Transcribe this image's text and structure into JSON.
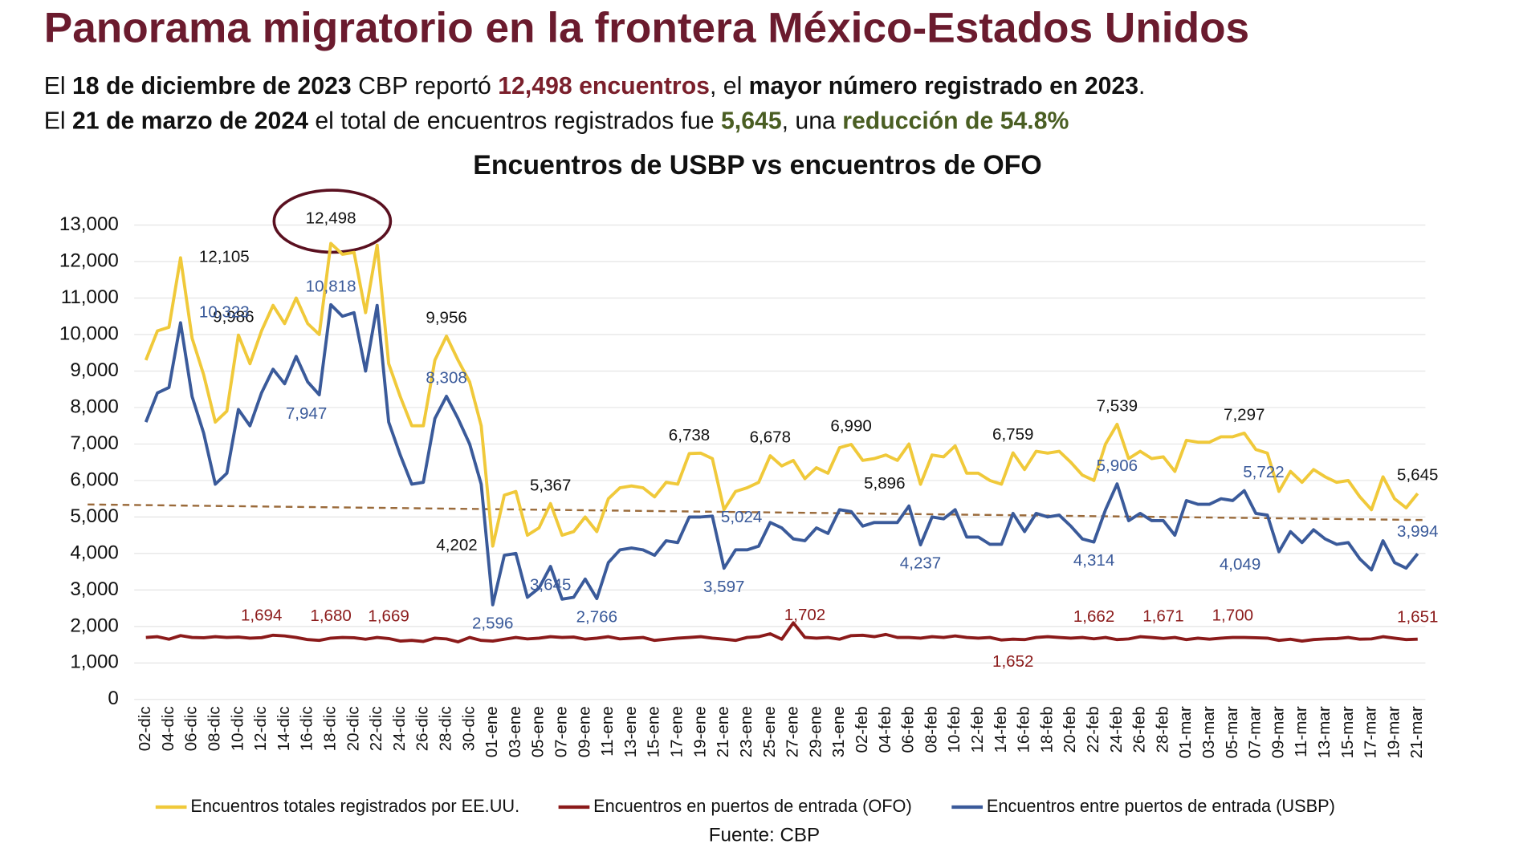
{
  "header": {
    "title": "Panorama migratorio en la frontera México-Estados Unidos",
    "line1": [
      "El ",
      "18 de diciembre de 2023",
      " CBP reportó ",
      "12,498 encuentros",
      ", el ",
      "mayor número registrado en 2023",
      "."
    ],
    "line2": [
      "El ",
      "21 de marzo de 2024",
      " el total de encuentros registrados fue ",
      "5,645",
      ", una ",
      "reducción de 54.8%"
    ]
  },
  "chart_data": {
    "type": "line",
    "title": "Encuentros de USBP vs encuentros de OFO",
    "source": "Fuente: CBP",
    "categories": [
      "02-dic",
      null,
      "04-dic",
      null,
      "06-dic",
      null,
      "08-dic",
      null,
      "10-dic",
      null,
      "12-dic",
      null,
      "14-dic",
      null,
      "16-dic",
      null,
      "18-dic",
      null,
      "20-dic",
      null,
      "22-dic",
      null,
      "24-dic",
      null,
      "26-dic",
      null,
      "28-dic",
      null,
      "30-dic",
      null,
      "01-ene",
      null,
      "03-ene",
      null,
      "05-ene",
      null,
      "07-ene",
      null,
      "09-ene",
      null,
      "11-ene",
      null,
      "13-ene",
      null,
      "15-ene",
      null,
      "17-ene",
      null,
      "19-ene",
      null,
      "21-ene",
      null,
      "23-ene",
      null,
      "25-ene",
      null,
      "27-ene",
      null,
      "29-ene",
      null,
      "31-ene",
      null,
      "02-feb",
      null,
      "04-feb",
      null,
      "06-feb",
      null,
      "08-feb",
      null,
      "10-feb",
      null,
      "12-feb",
      null,
      "14-feb",
      null,
      "16-feb",
      null,
      "18-feb",
      null,
      "20-feb",
      null,
      "22-feb",
      null,
      "24-feb",
      null,
      "26-feb",
      null,
      "28-feb",
      null,
      "01-mar",
      null,
      "03-mar",
      null,
      "05-mar",
      null,
      "07-mar",
      null,
      "09-mar",
      null,
      "11-mar",
      null,
      "13-mar",
      null,
      "15-mar",
      null,
      "17-mar",
      null,
      "19-mar",
      null,
      "21-mar"
    ],
    "series": [
      {
        "name": "Encuentros totales registrados por EE.UU.",
        "color": "#f0c93a",
        "values": [
          9300,
          10100,
          10200,
          12105,
          9900,
          8900,
          7600,
          7900,
          9986,
          9200,
          10100,
          10800,
          10300,
          11000,
          10300,
          10000,
          12498,
          12200,
          12250,
          10600,
          12450,
          9200,
          8300,
          7500,
          7500,
          9300,
          9956,
          9300,
          8700,
          7500,
          4202,
          5600,
          5700,
          4500,
          4700,
          5367,
          4500,
          4600,
          5000,
          4600,
          5500,
          5800,
          5850,
          5800,
          5550,
          5950,
          5900,
          6738,
          6750,
          6600,
          5200,
          5700,
          5800,
          5950,
          6678,
          6400,
          6550,
          6050,
          6350,
          6200,
          6900,
          6990,
          6550,
          6600,
          6700,
          6550,
          7000,
          5896,
          6700,
          6650,
          6950,
          6200,
          6200,
          6000,
          5900,
          6759,
          6300,
          6800,
          6750,
          6800,
          6500,
          6150,
          6000,
          7000,
          7539,
          6600,
          6800,
          6600,
          6650,
          6250,
          7100,
          7050,
          7050,
          7200,
          7200,
          7297,
          6850,
          6750,
          5700,
          6250,
          5950,
          6300,
          6100,
          5950,
          6000,
          5550,
          5200,
          6100,
          5500,
          5250,
          5645
        ],
        "value_labels": [
          null,
          null,
          null,
          "12,105",
          null,
          null,
          null,
          null,
          "9,986",
          null,
          null,
          null,
          null,
          null,
          null,
          null,
          "12,498",
          null,
          null,
          null,
          null,
          null,
          null,
          null,
          null,
          null,
          "9,956",
          null,
          null,
          null,
          "4,202",
          null,
          null,
          null,
          null,
          "5,367",
          null,
          null,
          null,
          null,
          null,
          null,
          null,
          null,
          null,
          null,
          null,
          "6,738",
          null,
          null,
          null,
          null,
          null,
          null,
          "6,678",
          null,
          null,
          null,
          null,
          null,
          null,
          "6,990",
          null,
          null,
          null,
          null,
          null,
          "5,896",
          null,
          null,
          null,
          null,
          null,
          null,
          null,
          "6,759",
          null,
          null,
          null,
          null,
          null,
          null,
          null,
          null,
          "7,539",
          null,
          null,
          null,
          null,
          null,
          null,
          null,
          null,
          null,
          null,
          "7,297",
          null,
          null,
          null,
          null,
          null,
          null,
          null,
          null,
          null,
          null,
          null,
          null,
          null,
          null,
          "5,645"
        ]
      },
      {
        "name": "Encuentros en puertos de entrada (OFO)",
        "color": "#8b1a1a",
        "values": [
          1700,
          1720,
          1650,
          1750,
          1700,
          1690,
          1720,
          1700,
          1710,
          1680,
          1694,
          1760,
          1740,
          1700,
          1640,
          1620,
          1680,
          1700,
          1690,
          1650,
          1700,
          1669,
          1600,
          1620,
          1590,
          1680,
          1660,
          1580,
          1700,
          1620,
          1600,
          1650,
          1700,
          1660,
          1680,
          1720,
          1700,
          1710,
          1650,
          1680,
          1720,
          1660,
          1680,
          1700,
          1620,
          1650,
          1680,
          1700,
          1720,
          1680,
          1650,
          1620,
          1700,
          1720,
          1800,
          1650,
          2100,
          1702,
          1680,
          1700,
          1650,
          1750,
          1760,
          1720,
          1780,
          1700,
          1700,
          1680,
          1720,
          1700,
          1740,
          1700,
          1680,
          1700,
          1630,
          1652,
          1640,
          1700,
          1720,
          1700,
          1680,
          1700,
          1662,
          1700,
          1640,
          1660,
          1720,
          1700,
          1671,
          1700,
          1640,
          1680,
          1650,
          1680,
          1700,
          1700,
          1690,
          1680,
          1620,
          1650,
          1600,
          1640,
          1660,
          1670,
          1700,
          1650,
          1660,
          1720,
          1680,
          1640,
          1651
        ],
        "value_labels": [
          null,
          null,
          null,
          null,
          null,
          null,
          null,
          null,
          null,
          null,
          "1,694",
          null,
          null,
          null,
          null,
          null,
          "1,680",
          null,
          null,
          null,
          null,
          "1,669",
          null,
          null,
          null,
          null,
          null,
          null,
          null,
          null,
          null,
          null,
          null,
          null,
          null,
          null,
          null,
          null,
          null,
          null,
          null,
          null,
          null,
          null,
          null,
          null,
          null,
          null,
          null,
          null,
          null,
          null,
          null,
          null,
          null,
          null,
          null,
          "1,702",
          null,
          null,
          null,
          null,
          null,
          null,
          null,
          null,
          null,
          null,
          null,
          null,
          null,
          null,
          null,
          null,
          null,
          "1,652",
          null,
          null,
          null,
          null,
          null,
          null,
          "1,662",
          null,
          null,
          null,
          null,
          null,
          "1,671",
          null,
          null,
          null,
          null,
          null,
          "1,700",
          null,
          null,
          null,
          null,
          null,
          null,
          null,
          null,
          null,
          null,
          null,
          null,
          null,
          null,
          null,
          "1,651"
        ]
      },
      {
        "name": "Encuentros entre puertos de entrada (USBP)",
        "color": "#3a5a9a",
        "values": [
          7600,
          8400,
          8550,
          10323,
          8300,
          7300,
          5900,
          6200,
          7947,
          7500,
          8400,
          9050,
          8650,
          9400,
          8700,
          8350,
          10818,
          10500,
          10600,
          9000,
          10800,
          7600,
          6700,
          5900,
          5950,
          7700,
          8308,
          7700,
          7000,
          5900,
          2596,
          3950,
          4000,
          2800,
          3050,
          3645,
          2750,
          2800,
          3300,
          2766,
          3750,
          4100,
          4150,
          4100,
          3950,
          4350,
          4300,
          5000,
          5000,
          5024,
          3597,
          4100,
          4100,
          4200,
          4850,
          4700,
          4400,
          4350,
          4700,
          4550,
          5200,
          5150,
          4750,
          4850,
          4850,
          4850,
          5300,
          4237,
          5000,
          4950,
          5200,
          4450,
          4450,
          4250,
          4250,
          5100,
          4600,
          5100,
          5000,
          5050,
          4750,
          4400,
          4314,
          5200,
          5906,
          4900,
          5100,
          4900,
          4900,
          4500,
          5450,
          5350,
          5350,
          5500,
          5450,
          5722,
          5100,
          5050,
          4049,
          4600,
          4300,
          4650,
          4400,
          4250,
          4300,
          3850,
          3550,
          4350,
          3750,
          3600,
          3994
        ],
        "value_labels": [
          null,
          null,
          null,
          "10,323",
          null,
          null,
          null,
          null,
          "7,947",
          null,
          null,
          null,
          null,
          null,
          null,
          null,
          "10,818",
          null,
          null,
          null,
          null,
          null,
          null,
          null,
          null,
          null,
          "8,308",
          null,
          null,
          null,
          "2,596",
          null,
          null,
          null,
          null,
          "3,645",
          null,
          null,
          null,
          "2,766",
          null,
          null,
          null,
          null,
          null,
          null,
          null,
          null,
          null,
          "5,024",
          "3,597",
          null,
          null,
          null,
          null,
          null,
          null,
          null,
          null,
          null,
          null,
          null,
          null,
          null,
          null,
          null,
          null,
          "4,237",
          null,
          null,
          null,
          null,
          null,
          null,
          null,
          null,
          null,
          null,
          null,
          null,
          null,
          null,
          "4,314",
          null,
          "5,906",
          null,
          null,
          null,
          null,
          null,
          null,
          null,
          null,
          null,
          null,
          "5,722",
          null,
          null,
          "4,049",
          null,
          null,
          null,
          null,
          null,
          null,
          null,
          null,
          null,
          null,
          null,
          "3,994"
        ]
      }
    ],
    "ylim": [
      0,
      13000
    ],
    "yticks": [
      0,
      {
        "value": 1000,
        "label": "1,000"
      },
      {
        "value": 2000,
        "label": "2,000"
      },
      {
        "value": 3000,
        "label": "3,000"
      },
      {
        "value": 4000,
        "label": "4,000"
      },
      {
        "value": 5000,
        "label": "5,000"
      },
      {
        "value": 6000,
        "label": "6,000"
      },
      {
        "value": 7000,
        "label": "7,000"
      },
      {
        "value": 8000,
        "label": "8,000"
      },
      {
        "value": 9000,
        "label": "9,000"
      },
      {
        "value": 10000,
        "label": "10,000"
      },
      {
        "value": 11000,
        "label": "11,000"
      },
      {
        "value": 12000,
        "label": "12,000"
      },
      {
        "value": 13000,
        "label": "13,000"
      }
    ],
    "grid": true,
    "legend": "bottom"
  }
}
